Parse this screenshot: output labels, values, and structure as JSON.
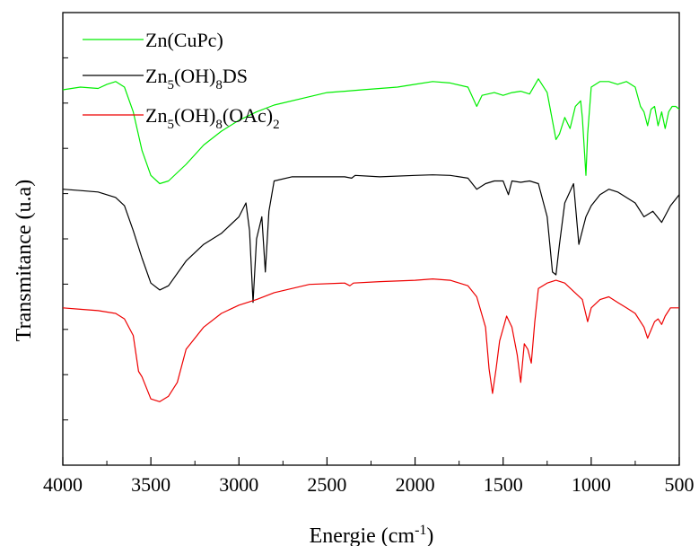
{
  "chart_data": {
    "type": "line",
    "xlabel": "Energie (cm⁻¹)",
    "xlabel_main": "Energie (cm",
    "xlabel_sup": "-1",
    "xlabel_close": ")",
    "ylabel": "Transmitance (u.a)",
    "xlim": [
      4000,
      500
    ],
    "x_reversed": true,
    "x_ticks": [
      "4000",
      "3500",
      "3000",
      "2500",
      "2000",
      "1500",
      "1000",
      "500"
    ],
    "y_ticks_labeled": false,
    "grid": false,
    "legend_position": "top-left",
    "series": [
      {
        "name": "Zn(CuPc)",
        "legend_parts": [
          {
            "t": "Zn(CuPc)",
            "sub": false
          }
        ],
        "color": "#00ee00",
        "points": [
          [
            4000,
            0.54
          ],
          [
            3900,
            0.53
          ],
          [
            3800,
            0.535
          ],
          [
            3750,
            0.52
          ],
          [
            3700,
            0.51
          ],
          [
            3650,
            0.53
          ],
          [
            3600,
            0.62
          ],
          [
            3550,
            0.76
          ],
          [
            3500,
            0.85
          ],
          [
            3450,
            0.88
          ],
          [
            3400,
            0.87
          ],
          [
            3300,
            0.81
          ],
          [
            3200,
            0.74
          ],
          [
            3100,
            0.69
          ],
          [
            3000,
            0.65
          ],
          [
            2900,
            0.62
          ],
          [
            2800,
            0.595
          ],
          [
            2600,
            0.565
          ],
          [
            2500,
            0.55
          ],
          [
            2400,
            0.545
          ],
          [
            2300,
            0.54
          ],
          [
            2200,
            0.535
          ],
          [
            2100,
            0.53
          ],
          [
            2000,
            0.52
          ],
          [
            1900,
            0.51
          ],
          [
            1800,
            0.515
          ],
          [
            1700,
            0.53
          ],
          [
            1650,
            0.6
          ],
          [
            1620,
            0.56
          ],
          [
            1550,
            0.55
          ],
          [
            1500,
            0.56
          ],
          [
            1450,
            0.55
          ],
          [
            1400,
            0.545
          ],
          [
            1350,
            0.555
          ],
          [
            1300,
            0.5
          ],
          [
            1250,
            0.55
          ],
          [
            1200,
            0.72
          ],
          [
            1180,
            0.7
          ],
          [
            1150,
            0.64
          ],
          [
            1120,
            0.68
          ],
          [
            1090,
            0.6
          ],
          [
            1060,
            0.58
          ],
          [
            1050,
            0.64
          ],
          [
            1030,
            0.85
          ],
          [
            1020,
            0.7
          ],
          [
            1000,
            0.53
          ],
          [
            950,
            0.51
          ],
          [
            900,
            0.51
          ],
          [
            850,
            0.52
          ],
          [
            800,
            0.51
          ],
          [
            750,
            0.53
          ],
          [
            720,
            0.6
          ],
          [
            700,
            0.62
          ],
          [
            680,
            0.67
          ],
          [
            660,
            0.61
          ],
          [
            640,
            0.6
          ],
          [
            620,
            0.67
          ],
          [
            600,
            0.62
          ],
          [
            580,
            0.68
          ],
          [
            560,
            0.62
          ],
          [
            540,
            0.6
          ],
          [
            520,
            0.6
          ],
          [
            500,
            0.61
          ]
        ]
      },
      {
        "name": "Zn5(OH)8DS",
        "legend_parts": [
          {
            "t": "Zn",
            "sub": false
          },
          {
            "t": "5",
            "sub": true
          },
          {
            "t": "(OH)",
            "sub": false
          },
          {
            "t": "8",
            "sub": true
          },
          {
            "t": "DS",
            "sub": false
          }
        ],
        "color": "#000000",
        "points": [
          [
            4000,
            0.9
          ],
          [
            3900,
            0.905
          ],
          [
            3800,
            0.91
          ],
          [
            3700,
            0.93
          ],
          [
            3650,
            0.96
          ],
          [
            3600,
            1.05
          ],
          [
            3550,
            1.15
          ],
          [
            3500,
            1.24
          ],
          [
            3450,
            1.265
          ],
          [
            3400,
            1.25
          ],
          [
            3300,
            1.16
          ],
          [
            3200,
            1.1
          ],
          [
            3100,
            1.06
          ],
          [
            3000,
            1.0
          ],
          [
            2960,
            0.95
          ],
          [
            2940,
            1.05
          ],
          [
            2920,
            1.31
          ],
          [
            2900,
            1.08
          ],
          [
            2870,
            1.0
          ],
          [
            2850,
            1.2
          ],
          [
            2830,
            0.98
          ],
          [
            2800,
            0.87
          ],
          [
            2700,
            0.855
          ],
          [
            2500,
            0.855
          ],
          [
            2400,
            0.855
          ],
          [
            2360,
            0.86
          ],
          [
            2340,
            0.85
          ],
          [
            2200,
            0.855
          ],
          [
            2000,
            0.85
          ],
          [
            1900,
            0.848
          ],
          [
            1800,
            0.85
          ],
          [
            1700,
            0.86
          ],
          [
            1650,
            0.9
          ],
          [
            1600,
            0.88
          ],
          [
            1550,
            0.87
          ],
          [
            1500,
            0.87
          ],
          [
            1470,
            0.92
          ],
          [
            1450,
            0.87
          ],
          [
            1400,
            0.875
          ],
          [
            1350,
            0.87
          ],
          [
            1300,
            0.88
          ],
          [
            1250,
            1.0
          ],
          [
            1220,
            1.2
          ],
          [
            1200,
            1.21
          ],
          [
            1180,
            1.1
          ],
          [
            1150,
            0.95
          ],
          [
            1100,
            0.88
          ],
          [
            1070,
            1.1
          ],
          [
            1050,
            1.05
          ],
          [
            1030,
            1.0
          ],
          [
            1000,
            0.96
          ],
          [
            950,
            0.92
          ],
          [
            900,
            0.9
          ],
          [
            850,
            0.91
          ],
          [
            800,
            0.93
          ],
          [
            750,
            0.95
          ],
          [
            700,
            1.0
          ],
          [
            650,
            0.98
          ],
          [
            600,
            1.02
          ],
          [
            550,
            0.96
          ],
          [
            500,
            0.92
          ]
        ]
      },
      {
        "name": "Zn5(OH)8(OAc)2",
        "legend_parts": [
          {
            "t": "Zn",
            "sub": false
          },
          {
            "t": "5",
            "sub": true
          },
          {
            "t": "(OH)",
            "sub": false
          },
          {
            "t": "8",
            "sub": true
          },
          {
            "t": "(OAc)",
            "sub": false
          },
          {
            "t": "2",
            "sub": true
          }
        ],
        "color": "#ee0000",
        "points": [
          [
            4000,
            1.33
          ],
          [
            3900,
            1.335
          ],
          [
            3800,
            1.34
          ],
          [
            3700,
            1.35
          ],
          [
            3650,
            1.37
          ],
          [
            3600,
            1.43
          ],
          [
            3570,
            1.56
          ],
          [
            3550,
            1.58
          ],
          [
            3500,
            1.66
          ],
          [
            3450,
            1.67
          ],
          [
            3400,
            1.65
          ],
          [
            3350,
            1.6
          ],
          [
            3300,
            1.48
          ],
          [
            3200,
            1.4
          ],
          [
            3100,
            1.35
          ],
          [
            3000,
            1.32
          ],
          [
            2900,
            1.3
          ],
          [
            2800,
            1.275
          ],
          [
            2600,
            1.245
          ],
          [
            2400,
            1.24
          ],
          [
            2370,
            1.25
          ],
          [
            2350,
            1.24
          ],
          [
            2200,
            1.235
          ],
          [
            2000,
            1.23
          ],
          [
            1900,
            1.225
          ],
          [
            1800,
            1.23
          ],
          [
            1700,
            1.25
          ],
          [
            1650,
            1.29
          ],
          [
            1600,
            1.4
          ],
          [
            1580,
            1.55
          ],
          [
            1560,
            1.64
          ],
          [
            1540,
            1.55
          ],
          [
            1520,
            1.45
          ],
          [
            1480,
            1.36
          ],
          [
            1450,
            1.4
          ],
          [
            1420,
            1.5
          ],
          [
            1400,
            1.6
          ],
          [
            1380,
            1.46
          ],
          [
            1360,
            1.48
          ],
          [
            1340,
            1.53
          ],
          [
            1320,
            1.38
          ],
          [
            1300,
            1.26
          ],
          [
            1250,
            1.24
          ],
          [
            1200,
            1.23
          ],
          [
            1150,
            1.24
          ],
          [
            1100,
            1.27
          ],
          [
            1050,
            1.3
          ],
          [
            1020,
            1.38
          ],
          [
            1000,
            1.33
          ],
          [
            950,
            1.3
          ],
          [
            900,
            1.29
          ],
          [
            850,
            1.31
          ],
          [
            800,
            1.33
          ],
          [
            750,
            1.35
          ],
          [
            700,
            1.4
          ],
          [
            680,
            1.44
          ],
          [
            660,
            1.41
          ],
          [
            640,
            1.38
          ],
          [
            620,
            1.37
          ],
          [
            600,
            1.39
          ],
          [
            580,
            1.36
          ],
          [
            550,
            1.33
          ],
          [
            500,
            1.33
          ]
        ]
      }
    ]
  }
}
